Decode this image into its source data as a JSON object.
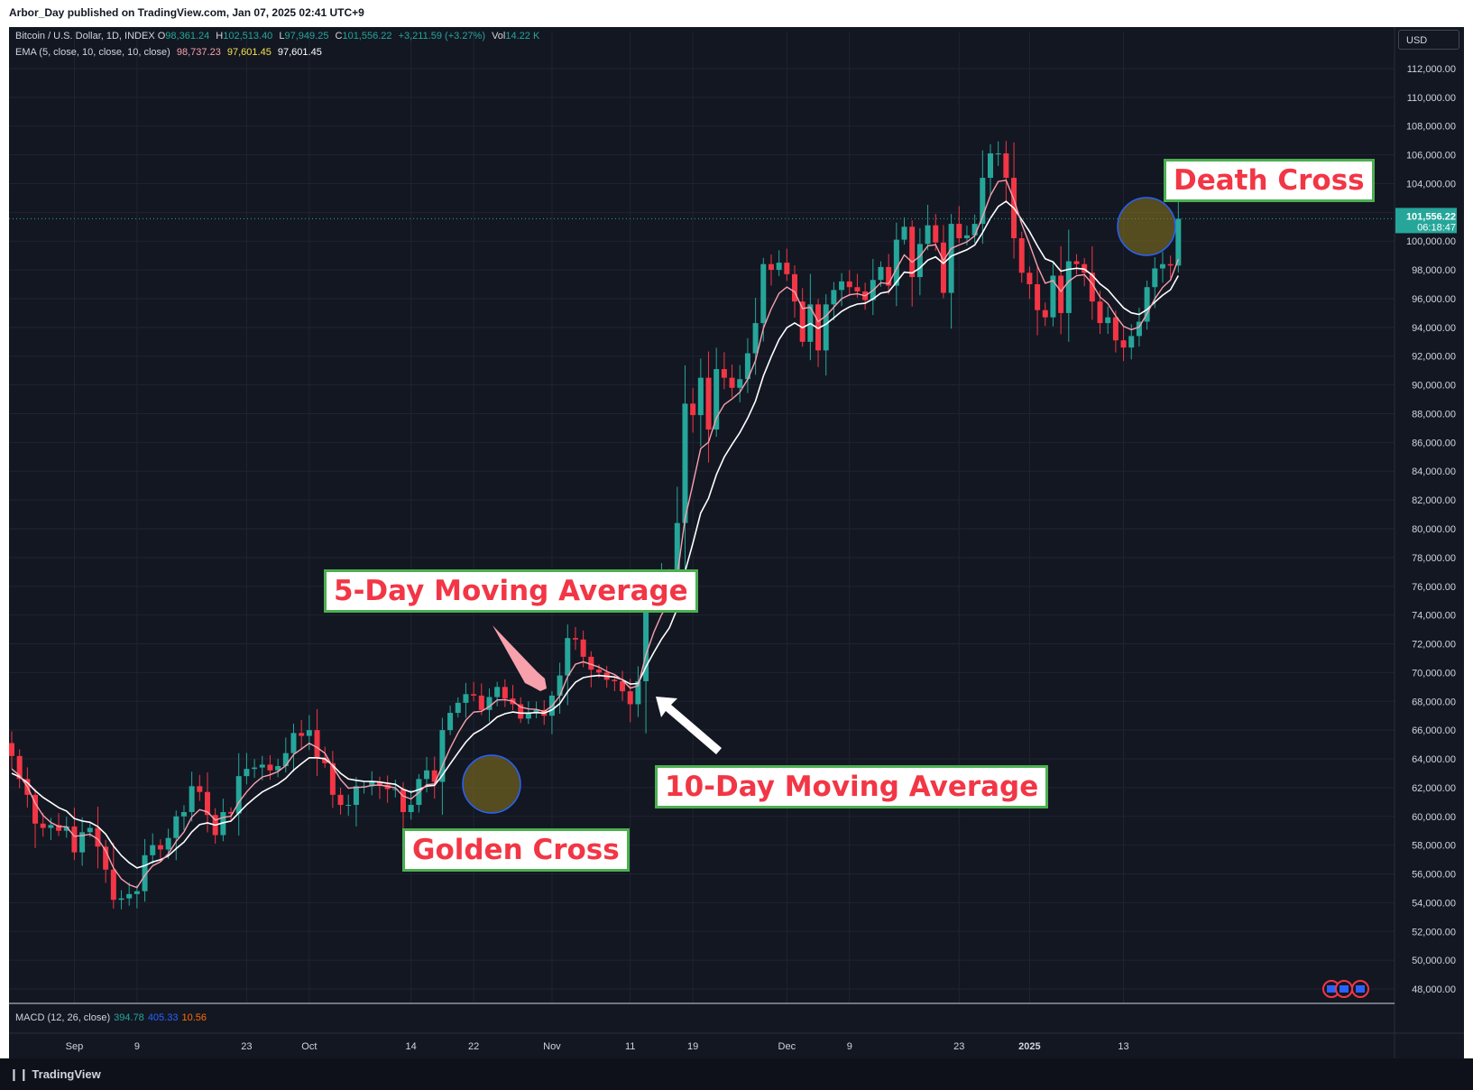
{
  "header": {
    "published_by": "Arbor_Day published on TradingView.com, Jan 07, 2025 02:41 UTC+9"
  },
  "legend": {
    "symbol": "Bitcoin / U.S. Dollar, 1D, INDEX",
    "open_label": "O",
    "open": "98,361.24",
    "high_label": "H",
    "high": "102,513.40",
    "low_label": "L",
    "low": "97,949.25",
    "close_label": "C",
    "close": "101,556.22",
    "change": "+3,211.59 (+3.27%)",
    "vol_label": "Vol",
    "vol": "14.22 K",
    "ema_label": "EMA (5, close, 10, close, 10, close)",
    "ema_v1": "98,737.23",
    "ema_v2": "97,601.45",
    "ema_v3": "97,601.45"
  },
  "macd": {
    "label": "MACD (12, 26, close)",
    "v1": "394.78",
    "v2": "405.33",
    "v3": "10.56"
  },
  "currency": "USD",
  "price_tag": {
    "price": "101,556.22",
    "countdown": "06:18:47"
  },
  "annotations": {
    "five_day": "5-Day Moving Average",
    "ten_day": "10-Day Moving Average",
    "golden": "Golden Cross",
    "death": "Death Cross"
  },
  "footer": {
    "brand": "TradingView"
  },
  "colors": {
    "background": "#131722",
    "up": "#26a69a",
    "down": "#f23645",
    "ema5": "#f7a1ad",
    "ema10": "#ffffff",
    "grid": "#1f2433",
    "annotation_text": "#f23645",
    "annotation_border": "#4caf50"
  },
  "chart_data": {
    "type": "candlestick",
    "y_axis": {
      "min": 47000,
      "max": 113000,
      "unit": "USD",
      "ticks": [
        48000,
        50000,
        52000,
        54000,
        56000,
        58000,
        60000,
        62000,
        64000,
        66000,
        68000,
        70000,
        72000,
        74000,
        76000,
        78000,
        80000,
        82000,
        84000,
        86000,
        88000,
        90000,
        92000,
        94000,
        96000,
        98000,
        100000,
        102000,
        104000,
        106000,
        108000,
        110000,
        112000
      ],
      "tick_labels": [
        "48,000.00",
        "50,000.00",
        "52,000.00",
        "54,000.00",
        "56,000.00",
        "58,000.00",
        "60,000.00",
        "62,000.00",
        "64,000.00",
        "66,000.00",
        "68,000.00",
        "70,000.00",
        "72,000.00",
        "74,000.00",
        "76,000.00",
        "78,000.00",
        "80,000.00",
        "82,000.00",
        "84,000.00",
        "86,000.00",
        "88,000.00",
        "90,000.00",
        "92,000.00",
        "94,000.00",
        "96,000.00",
        "98,000.00",
        "100,000.00",
        "102,000.00",
        "104,000.00",
        "106,000.00",
        "108,000.00",
        "110,000.00",
        "112,000.00"
      ]
    },
    "x_axis": {
      "start_date": "2024-08-24",
      "tick_labels": [
        {
          "label": "Sep",
          "date": "2024-09-01"
        },
        {
          "label": "9",
          "date": "2024-09-09"
        },
        {
          "label": "23",
          "date": "2024-09-23"
        },
        {
          "label": "Oct",
          "date": "2024-10-01"
        },
        {
          "label": "14",
          "date": "2024-10-14"
        },
        {
          "label": "22",
          "date": "2024-10-22"
        },
        {
          "label": "Nov",
          "date": "2024-11-01"
        },
        {
          "label": "11",
          "date": "2024-11-11"
        },
        {
          "label": "19",
          "date": "2024-11-19"
        },
        {
          "label": "Dec",
          "date": "2024-12-01"
        },
        {
          "label": "9",
          "date": "2024-12-09"
        },
        {
          "label": "23",
          "date": "2024-12-23"
        },
        {
          "label": "2025",
          "date": "2025-01-01"
        },
        {
          "label": "13",
          "date": "2025-01-13"
        }
      ]
    },
    "close": [
      64200,
      62600,
      61500,
      59500,
      59200,
      59400,
      59000,
      59300,
      57500,
      58900,
      59200,
      57900,
      56300,
      54200,
      54300,
      54600,
      54800,
      57300,
      58000,
      57700,
      58500,
      60000,
      60300,
      62100,
      61700,
      60100,
      58700,
      60300,
      60200,
      62800,
      63300,
      63400,
      63600,
      63200,
      63500,
      64400,
      65800,
      65600,
      66000,
      64100,
      63700,
      61500,
      60800,
      60800,
      62100,
      62100,
      62400,
      62200,
      61900,
      61900,
      60300,
      60800,
      62600,
      63200,
      62400,
      66000,
      67200,
      67900,
      68500,
      68400,
      67400,
      68300,
      69000,
      68200,
      67800,
      66800,
      67200,
      67400,
      67000,
      68400,
      69800,
      72400,
      72300,
      71100,
      70200,
      70000,
      69500,
      69400,
      68700,
      67800,
      69400,
      75600,
      75900,
      76500,
      76600,
      80400,
      88700,
      87900,
      90500,
      86900,
      91100,
      90500,
      89800,
      90400,
      92200,
      94300,
      98400,
      98000,
      98500,
      97700,
      95800,
      93000,
      95600,
      92400,
      95600,
      96600,
      97200,
      96800,
      96500,
      95900,
      97300,
      98200,
      96900,
      100100,
      101000,
      97500,
      99800,
      101100,
      99900,
      96400,
      101200,
      100200,
      100400,
      101200,
      104400,
      106100,
      106100,
      104400,
      100200,
      97800,
      97000,
      95200,
      94700,
      97600,
      95000,
      98600,
      98400,
      97800,
      95800,
      94300,
      94700,
      93100,
      92600,
      93400,
      94400,
      96800,
      98100,
      98400,
      98300,
      101556
    ],
    "ema5": [
      63300,
      62840,
      62060,
      60920,
      60070,
      59580,
      59300,
      59280,
      58620,
      58660,
      58760,
      58420,
      57620,
      56420,
      55660,
      55250,
      55050,
      55910,
      56560,
      56850,
      57400,
      58260,
      58920,
      59950,
      60470,
      60310,
      59740,
      59930,
      60020,
      60980,
      61700,
      62290,
      62740,
      62890,
      63120,
      63530,
      64300,
      64690,
      65090,
      64790,
      64400,
      63450,
      62570,
      61960,
      62010,
      62040,
      62160,
      62180,
      62090,
      61980,
      61410,
      61210,
      61670,
      62200,
      62260,
      63520,
      64740,
      65800,
      66690,
      67250,
      67310,
      67640,
      68090,
      68120,
      68010,
      67600,
      67470,
      67440,
      67290,
      67670,
      68380,
      69720,
      70580,
      70750,
      70570,
      70380,
      70080,
      69860,
      69480,
      68920,
      69080,
      71240,
      72790,
      74030,
      74890,
      76730,
      80720,
      83120,
      85580,
      86020,
      87700,
      88640,
      89030,
      89490,
      90390,
      91700,
      93930,
      95290,
      96360,
      96810,
      96470,
      95310,
      95400,
      94400,
      94800,
      95400,
      96000,
      96270,
      96340,
      96200,
      96570,
      97110,
      97040,
      98070,
      99040,
      98530,
      98950,
      99670,
      99750,
      98630,
      99490,
      99730,
      99950,
      100370,
      101710,
      103170,
      104150,
      104230,
      102890,
      101190,
      99790,
      98260,
      97070,
      97250,
      96500,
      97200,
      97600,
      97670,
      97040,
      96120,
      95650,
      94800,
      94070,
      93840,
      94030,
      94950,
      95990,
      96790,
      97290,
      98737
    ],
    "ema10": [
      63000,
      62750,
      62340,
      61790,
      61320,
      60970,
      60610,
      60370,
      59850,
      59680,
      59590,
      59290,
      58770,
      57940,
      57280,
      56780,
      56420,
      56580,
      56830,
      56990,
      57260,
      57760,
      58220,
      58920,
      59430,
      59550,
      59400,
      59560,
      59670,
      60240,
      60800,
      61270,
      61700,
      61980,
      62260,
      62650,
      63220,
      63660,
      64080,
      64080,
      64010,
      63550,
      63000,
      62600,
      62510,
      62440,
      62430,
      62390,
      62300,
      62230,
      61880,
      61690,
      61860,
      62110,
      62160,
      62860,
      63650,
      64420,
      65160,
      65740,
      66040,
      66440,
      66910,
      67140,
      67260,
      67180,
      67180,
      67220,
      67180,
      67400,
      67840,
      68670,
      69330,
      69650,
      69750,
      69800,
      69750,
      69690,
      69510,
      69200,
      69240,
      70400,
      71400,
      72330,
      73110,
      74440,
      77030,
      79000,
      81090,
      82120,
      83760,
      84990,
      85870,
      86690,
      87690,
      88890,
      90620,
      91960,
      93150,
      93980,
      94310,
      93980,
      94270,
      93930,
      94230,
      94660,
      95120,
      95430,
      95620,
      95680,
      95980,
      96380,
      96480,
      97140,
      97840,
      97780,
      98140,
      98680,
      98900,
      98450,
      98950,
      99180,
      99400,
      99730,
      100590,
      101590,
      102410,
      102770,
      102300,
      101480,
      100660,
      99670,
      98770,
      98560,
      97910,
      98040,
      98110,
      98050,
      97640,
      97030,
      96610,
      95970,
      95360,
      95010,
      94900,
      95240,
      95760,
      96240,
      96620,
      97601
    ]
  }
}
